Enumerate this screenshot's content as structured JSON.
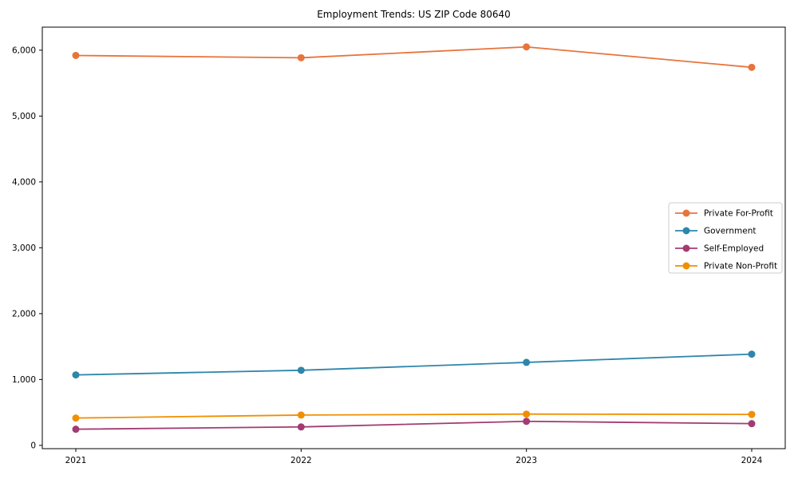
{
  "figure": {
    "title": "Employment Trends: US ZIP Code 80640"
  },
  "chart_data": {
    "type": "line",
    "title": "Employment Trends: US ZIP Code 80640",
    "categories": [
      "2021",
      "2022",
      "2023",
      "2024"
    ],
    "series": [
      {
        "name": "Private For-Profit",
        "color": "#E8743B",
        "values": [
          5920,
          5885,
          6050,
          5740
        ]
      },
      {
        "name": "Government",
        "color": "#2E86AB",
        "values": [
          1070,
          1140,
          1260,
          1385
        ]
      },
      {
        "name": "Self-Employed",
        "color": "#A23B72",
        "values": [
          245,
          280,
          365,
          330
        ]
      },
      {
        "name": "Private Non-Profit",
        "color": "#F18F01",
        "values": [
          415,
          460,
          475,
          470
        ]
      }
    ],
    "xlabel": "",
    "ylabel": "",
    "ylim": [
      -50,
      6350
    ],
    "yticks": [
      0,
      1000,
      2000,
      3000,
      4000,
      5000,
      6000
    ],
    "ytick_labels": [
      "0",
      "1,000",
      "2,000",
      "3,000",
      "4,000",
      "5,000",
      "6,000"
    ],
    "grid": false,
    "legend_position": "right",
    "marker": "circle",
    "line_width": 1.8,
    "marker_radius": 4.5,
    "axis_color": "#000000",
    "tick_label_color": "#000000",
    "legend_border_color": "#cccccc",
    "legend_background": "#ffffff"
  }
}
